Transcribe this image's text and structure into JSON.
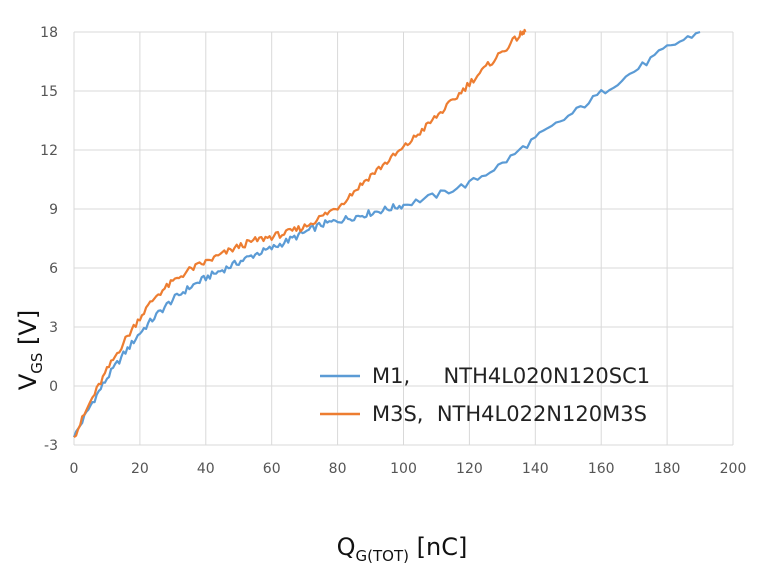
{
  "chart_data": {
    "type": "line",
    "title": "",
    "xlabel": {
      "main": "Q",
      "sub": "G(TOT)",
      "unit": " [nC]"
    },
    "ylabel": {
      "main": "V",
      "sub": "GS",
      "unit": " [V]"
    },
    "xlim": [
      0,
      200
    ],
    "ylim": [
      -3,
      18
    ],
    "xticks": [
      0,
      20,
      40,
      60,
      80,
      100,
      120,
      140,
      160,
      180,
      200
    ],
    "yticks": [
      -3,
      0,
      3,
      6,
      9,
      12,
      15,
      18
    ],
    "grid": true,
    "legend_position": "bottom-right",
    "series": [
      {
        "name": "M1,     NTH4L020N120SC1",
        "color": "#5b9bd5",
        "x": [
          0,
          5,
          10,
          15,
          20,
          25,
          30,
          35,
          40,
          45,
          50,
          55,
          60,
          65,
          70,
          75,
          80,
          85,
          90,
          95,
          100,
          110,
          120,
          130,
          140,
          150,
          160,
          170,
          180,
          190
        ],
        "y": [
          -2.6,
          -1.0,
          0.4,
          1.6,
          2.7,
          3.6,
          4.4,
          5.0,
          5.5,
          5.9,
          6.3,
          6.7,
          7.0,
          7.4,
          7.8,
          8.2,
          8.4,
          8.6,
          8.8,
          9.0,
          9.2,
          9.7,
          10.3,
          11.3,
          12.6,
          13.7,
          14.9,
          16.0,
          17.2,
          18.0
        ]
      },
      {
        "name": "M3S,  NTH4L022N120M3S",
        "color": "#ed7d31",
        "x": [
          0,
          5,
          10,
          15,
          20,
          25,
          30,
          35,
          40,
          45,
          50,
          55,
          60,
          65,
          70,
          75,
          80,
          85,
          90,
          95,
          100,
          105,
          110,
          115,
          120,
          125,
          130,
          135,
          137
        ],
        "y": [
          -2.6,
          -0.8,
          0.8,
          2.2,
          3.5,
          4.6,
          5.3,
          5.9,
          6.3,
          6.7,
          7.1,
          7.4,
          7.6,
          7.8,
          8.1,
          8.6,
          9.1,
          9.9,
          10.7,
          11.4,
          12.1,
          12.9,
          13.7,
          14.5,
          15.4,
          16.2,
          17.0,
          17.8,
          18.0
        ]
      }
    ]
  }
}
